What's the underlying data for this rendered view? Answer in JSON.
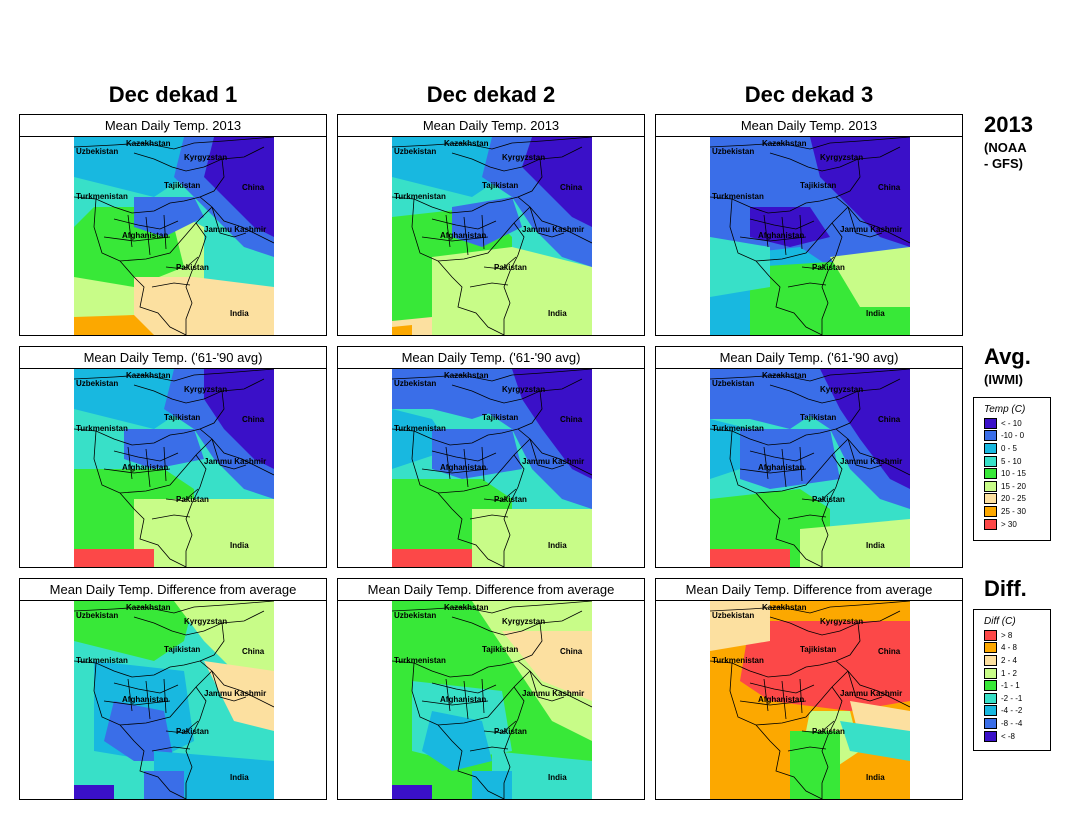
{
  "columns": [
    "Dec dekad 1",
    "Dec dekad 2",
    "Dec dekad 3"
  ],
  "rows": [
    {
      "label": "2013",
      "sublabel_lines": [
        "(NOAA",
        "- GFS)"
      ],
      "panel_title": "Mean Daily Temp. 2013",
      "type": "temp"
    },
    {
      "label": "Avg.",
      "sublabel_lines": [
        "(IWMI)"
      ],
      "panel_title": "Mean Daily Temp. ('61-'90 avg)",
      "type": "temp"
    },
    {
      "label": "Diff.",
      "sublabel_lines": [],
      "panel_title": "Mean Daily Temp. Difference from average",
      "type": "diff"
    }
  ],
  "map_labels": {
    "kazakhstan": "Kazakhstan",
    "uzbekistan": "Uzbekistan",
    "kyrgyzstan": "Kyrgyzstan",
    "tajikistan": "Tajikistan",
    "turkmenistan": "Turkmenistan",
    "china": "China",
    "afghanistan": "Afghanistan",
    "jammu_kashmir": "Jammu Kashmir",
    "pakistan": "Pakistan",
    "india": "India"
  },
  "temp_legend": {
    "title": "Temp (C)",
    "items": [
      {
        "label": "< - 10",
        "color": "#3a10c8"
      },
      {
        "label": "-10 -   0",
        "color": "#3a6ee8"
      },
      {
        "label": "0 -   5",
        "color": "#18b8e0"
      },
      {
        "label": "5 -  10",
        "color": "#38e0c8"
      },
      {
        "label": "10 -  15",
        "color": "#38e838"
      },
      {
        "label": "15 -  20",
        "color": "#c8fc88"
      },
      {
        "label": "20 -  25",
        "color": "#fce0a0"
      },
      {
        "label": "25 -  30",
        "color": "#fca800"
      },
      {
        "label": "> 30",
        "color": "#fc4848"
      }
    ]
  },
  "diff_legend": {
    "title": "Diff (C)",
    "items": [
      {
        "label": ">  8",
        "color": "#fc4848"
      },
      {
        "label": "4 -  8",
        "color": "#fca800"
      },
      {
        "label": "2 -  4",
        "color": "#fce0a0"
      },
      {
        "label": "1 -  2",
        "color": "#c8fc88"
      },
      {
        "label": "-1 -  1",
        "color": "#38e838"
      },
      {
        "label": "-2 -  -1",
        "color": "#38e0c8"
      },
      {
        "label": "-4 -  -2",
        "color": "#18b8e0"
      },
      {
        "label": "-8 -  -4",
        "color": "#3a6ee8"
      },
      {
        "label": "< -8",
        "color": "#3a10c8"
      }
    ]
  },
  "no_data_color": "#c8c8c8"
}
